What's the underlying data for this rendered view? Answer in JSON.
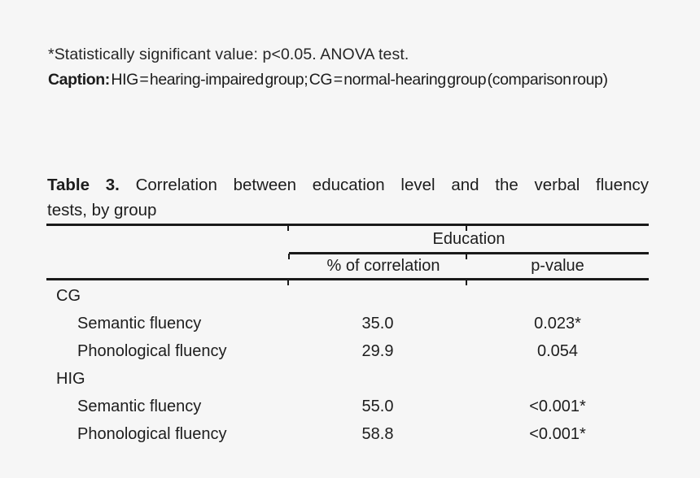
{
  "colors": {
    "background": "#f6f6f6",
    "text": "#1d1d1d",
    "rule": "#1a1a1a"
  },
  "footnotes": {
    "significance": "*Statistically significant value: p<0.05. ANOVA test.",
    "caption_label": "Caption:",
    "caption_text": " HIG = hearing-impaired group; CG = normal-hearing group (comparison roup)"
  },
  "table": {
    "title": {
      "label": "Table 3.",
      "line1": "Correlation between education level and the verbal fluency",
      "line2": "tests, by group"
    },
    "header": {
      "spanner": "Education",
      "correlation_col": "% of correlation",
      "p_value_col": "p-value"
    },
    "rows": [
      {
        "label": "CG",
        "type": "group",
        "correlation": "",
        "p_value": ""
      },
      {
        "label": "Semantic fluency",
        "type": "item",
        "correlation": "35.0",
        "p_value": "0.023*"
      },
      {
        "label": "Phonological fluency",
        "type": "item",
        "correlation": "29.9",
        "p_value": "0.054"
      },
      {
        "label": "HIG",
        "type": "group",
        "correlation": "",
        "p_value": ""
      },
      {
        "label": "Semantic fluency",
        "type": "item",
        "correlation": "55.0",
        "p_value": "<0.001*"
      },
      {
        "label": "Phonological fluency",
        "type": "item",
        "correlation": "58.8",
        "p_value": "<0.001*"
      }
    ]
  }
}
